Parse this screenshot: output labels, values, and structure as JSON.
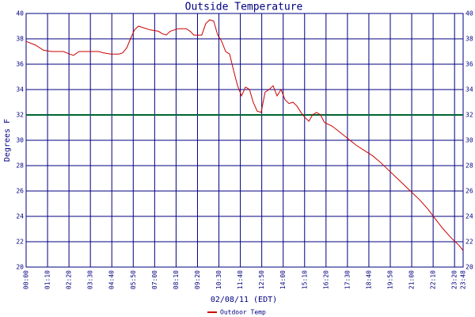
{
  "chart_data": {
    "type": "line",
    "title": "Outside Temperature",
    "ylabel": "Degrees F",
    "xlabel": "02/08/11 (EDT)",
    "xlim": [
      0,
      1428
    ],
    "ylim": [
      20,
      40
    ],
    "yticks": [
      20,
      22,
      24,
      26,
      28,
      30,
      32,
      34,
      36,
      38,
      40
    ],
    "right_axis_ticks": true,
    "xticks": [
      {
        "value": 0,
        "label": "00:00"
      },
      {
        "value": 70,
        "label": "01:10"
      },
      {
        "value": 140,
        "label": "02:20"
      },
      {
        "value": 210,
        "label": "03:30"
      },
      {
        "value": 280,
        "label": "04:40"
      },
      {
        "value": 350,
        "label": "05:50"
      },
      {
        "value": 420,
        "label": "07:00"
      },
      {
        "value": 490,
        "label": "08:10"
      },
      {
        "value": 560,
        "label": "09:20"
      },
      {
        "value": 630,
        "label": "10:30"
      },
      {
        "value": 700,
        "label": "11:40"
      },
      {
        "value": 770,
        "label": "12:50"
      },
      {
        "value": 840,
        "label": "14:00"
      },
      {
        "value": 910,
        "label": "15:10"
      },
      {
        "value": 980,
        "label": "16:20"
      },
      {
        "value": 1050,
        "label": "17:30"
      },
      {
        "value": 1120,
        "label": "18:40"
      },
      {
        "value": 1190,
        "label": "19:50"
      },
      {
        "value": 1260,
        "label": "21:00"
      },
      {
        "value": 1330,
        "label": "22:10"
      },
      {
        "value": 1400,
        "label": "23:20"
      },
      {
        "value": 1428,
        "label": "23:48"
      }
    ],
    "grid": true,
    "grid_color": "#000080",
    "reference_line": {
      "value": 32,
      "color": "#006633"
    },
    "x": [
      0,
      31,
      57,
      83,
      122,
      142,
      155,
      173,
      212,
      238,
      251,
      277,
      303,
      316,
      329,
      341,
      354,
      367,
      380,
      406,
      432,
      445,
      458,
      471,
      497,
      523,
      536,
      548,
      574,
      587,
      600,
      613,
      626,
      639,
      652,
      665,
      678,
      691,
      704,
      717,
      730,
      742,
      755,
      768,
      781,
      794,
      807,
      820,
      833,
      846,
      859,
      872,
      885,
      898,
      911,
      924,
      936,
      949,
      962,
      975,
      1001,
      1027,
      1053,
      1079,
      1105,
      1131,
      1156,
      1182,
      1208,
      1234,
      1260,
      1286,
      1312,
      1337,
      1363,
      1389,
      1415,
      1428
    ],
    "series": [
      {
        "name": "Outdoor Temp",
        "color": "#cc0000",
        "values": [
          37.8,
          37.5,
          37.1,
          37.0,
          37.0,
          36.8,
          36.7,
          37.0,
          37.0,
          37.0,
          36.9,
          36.8,
          36.8,
          36.9,
          37.3,
          38.0,
          38.7,
          39.0,
          38.9,
          38.7,
          38.6,
          38.4,
          38.3,
          38.6,
          38.8,
          38.8,
          38.6,
          38.3,
          38.3,
          39.2,
          39.5,
          39.4,
          38.3,
          37.8,
          37.0,
          36.8,
          35.5,
          34.3,
          33.5,
          34.2,
          34.0,
          33.0,
          32.3,
          32.2,
          33.8,
          34.0,
          34.3,
          33.5,
          34.0,
          33.2,
          32.9,
          33.0,
          32.7,
          32.2,
          31.8,
          31.5,
          32.0,
          32.2,
          32.0,
          31.4,
          31.1,
          30.6,
          30.1,
          29.6,
          29.2,
          28.8,
          28.3,
          27.7,
          27.1,
          26.5,
          25.9,
          25.3,
          24.6,
          23.8,
          23.0,
          22.3,
          21.7,
          21.3
        ]
      }
    ]
  }
}
